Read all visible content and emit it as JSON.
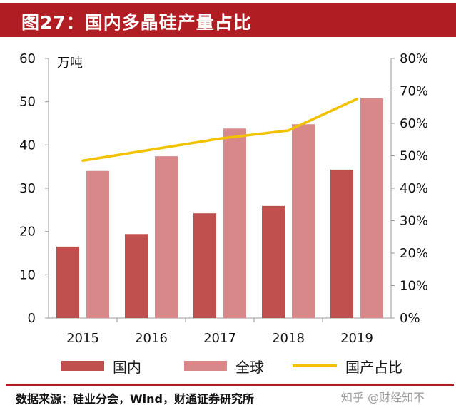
{
  "header": {
    "title": "图27：国内多晶硅产量占比"
  },
  "chart_data": {
    "type": "bar",
    "categories": [
      "2015",
      "2016",
      "2017",
      "2018",
      "2019"
    ],
    "series": [
      {
        "name": "国内",
        "type": "bar",
        "axis": "left",
        "color": "#c0504d",
        "values": [
          16.5,
          19.4,
          24.2,
          25.9,
          34.3
        ]
      },
      {
        "name": "全球",
        "type": "bar",
        "axis": "left",
        "color": "#d9888a",
        "values": [
          34,
          37.4,
          43.8,
          44.8,
          50.8
        ]
      },
      {
        "name": "国产占比",
        "type": "line",
        "axis": "right",
        "color": "#f2c200",
        "values": [
          48.5,
          51.9,
          55.3,
          57.8,
          67.5
        ]
      }
    ],
    "ylabel": "万吨",
    "ylim": [
      0,
      60
    ],
    "y_ticks": [
      0,
      10,
      20,
      30,
      40,
      50,
      60
    ],
    "y2lim": [
      0,
      80
    ],
    "y2_ticks": [
      "0%",
      "10%",
      "20%",
      "30%",
      "40%",
      "50%",
      "60%",
      "70%",
      "80%"
    ],
    "legend_position": "bottom",
    "grid": false
  },
  "footer": {
    "source": "数据来源：硅业分会，Wind，财通证券研究所",
    "watermark": "知乎 @财经知不"
  }
}
